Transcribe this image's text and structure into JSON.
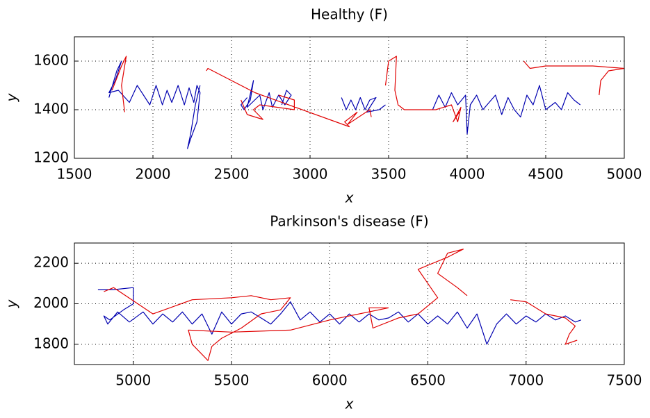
{
  "chart_data": [
    {
      "type": "line",
      "title": "Healthy (F)",
      "x_label": "x",
      "y_label": "y",
      "xlim": [
        1500,
        5000
      ],
      "ylim": [
        1200,
        1700
      ],
      "xticks": [
        1500,
        2000,
        2500,
        3000,
        3500,
        4000,
        4500,
        5000
      ],
      "yticks": [
        1200,
        1400,
        1600
      ],
      "grid": true,
      "series": [
        {
          "color": "#0000b0",
          "x": [
            1720,
            1770,
            1800,
            1760,
            1720,
            1780,
            1850,
            1900,
            1950,
            1980,
            2020,
            2060,
            2090,
            2120,
            2160,
            2200,
            2230,
            2260,
            2280,
            2300,
            2280,
            2240,
            2220,
            2240,
            2270,
            2300,
            null,
            2600,
            2560,
            2580,
            2620,
            2640,
            2600,
            2680,
            2700,
            2740,
            2760,
            2800,
            2840,
            2880,
            2850,
            2820,
            null,
            3200,
            3230,
            3260,
            3290,
            3320,
            3350,
            3380,
            3420,
            3360,
            3440,
            3480,
            null,
            3780,
            3820,
            3860,
            3900,
            3940,
            3990,
            4000,
            4020,
            4060,
            4100,
            4140,
            4180,
            4220,
            4260,
            4300,
            4340,
            4380,
            4420,
            4460,
            4500,
            4560,
            4600,
            4640,
            4680,
            4720
          ],
          "y": [
            1450,
            1560,
            1600,
            1520,
            1470,
            1480,
            1430,
            1500,
            1450,
            1420,
            1500,
            1420,
            1480,
            1430,
            1500,
            1420,
            1490,
            1430,
            1500,
            1470,
            1350,
            1280,
            1240,
            1300,
            1420,
            1500,
            null,
            1450,
            1420,
            1400,
            1440,
            1520,
            1410,
            1460,
            1400,
            1470,
            1410,
            1460,
            1420,
            1460,
            1480,
            1420,
            null,
            1450,
            1400,
            1440,
            1400,
            1450,
            1400,
            1440,
            1450,
            1390,
            1400,
            1420,
            null,
            1400,
            1460,
            1410,
            1470,
            1420,
            1460,
            1300,
            1420,
            1460,
            1400,
            1430,
            1460,
            1380,
            1450,
            1400,
            1370,
            1460,
            1420,
            1500,
            1400,
            1430,
            1400,
            1470,
            1440,
            1420
          ]
        },
        {
          "color": "#e00000",
          "x": [
            1740,
            1800,
            1830,
            1800,
            1820,
            null,
            2340,
            2350,
            2650,
            3250,
            3220,
            3300,
            3240,
            3380,
            3390,
            null,
            2560,
            2600,
            2700,
            2640,
            2680,
            2900,
            2900,
            2800,
            null,
            3480,
            3500,
            3550,
            3540,
            3560,
            3600,
            3800,
            3900,
            3940,
            3960,
            3910,
            3950,
            null,
            4360,
            4400,
            4500,
            4800,
            5000,
            4900,
            4850,
            4840
          ],
          "y": [
            1480,
            1580,
            1620,
            1500,
            1390,
            null,
            1560,
            1570,
            1470,
            1330,
            1350,
            1390,
            1340,
            1400,
            1370,
            null,
            1440,
            1380,
            1360,
            1400,
            1420,
            1400,
            1440,
            1460,
            null,
            1500,
            1600,
            1620,
            1480,
            1420,
            1400,
            1400,
            1420,
            1350,
            1410,
            1350,
            1390,
            null,
            1600,
            1570,
            1580,
            1580,
            1570,
            1560,
            1520,
            1460
          ]
        }
      ]
    },
    {
      "type": "line",
      "title": "Parkinson's disease (F)",
      "x_label": "x",
      "y_label": "y",
      "xlim": [
        4700,
        7500
      ],
      "ylim": [
        1700,
        2300
      ],
      "xticks": [
        5000,
        5500,
        6000,
        6500,
        7000,
        7500
      ],
      "yticks": [
        1800,
        2000,
        2200
      ],
      "grid": true,
      "series": [
        {
          "color": "#0000b0",
          "x": [
            4820,
            4900,
            5000,
            5000,
            4950,
            4880,
            4850,
            4870,
            4920,
            4980,
            5050,
            5100,
            5150,
            5200,
            5250,
            5300,
            5350,
            5400,
            5450,
            5500,
            5550,
            5600,
            5650,
            5700,
            5750,
            5800,
            5850,
            5900,
            5950,
            6000,
            6050,
            6100,
            6150,
            6200,
            6250,
            6300,
            6350,
            6400,
            6450,
            6500,
            6550,
            6600,
            6650,
            6700,
            6750,
            6800,
            6850,
            6900,
            6950,
            7000,
            7050,
            7100,
            7150,
            7200,
            7250,
            7280
          ],
          "y": [
            2070,
            2070,
            2080,
            2000,
            1970,
            1920,
            1940,
            1900,
            1960,
            1910,
            1960,
            1900,
            1950,
            1910,
            1960,
            1900,
            1950,
            1850,
            1960,
            1900,
            1950,
            1960,
            1930,
            1900,
            1950,
            2010,
            1920,
            1960,
            1910,
            1950,
            1900,
            1950,
            1910,
            1950,
            1920,
            1930,
            1960,
            1910,
            1950,
            1900,
            1940,
            1900,
            1960,
            1880,
            1950,
            1800,
            1900,
            1950,
            1900,
            1940,
            1910,
            1950,
            1920,
            1940,
            1910,
            1920
          ]
        },
        {
          "color": "#e00000",
          "x": [
            4850,
            4900,
            5100,
            5300,
            5500,
            5600,
            5700,
            5800,
            5750,
            5650,
            5550,
            5450,
            5400,
            5380,
            5300,
            5280,
            5500,
            5800,
            6000,
            6300,
            null,
            6300,
            6200,
            6220,
            6350,
            6450,
            6550,
            6500,
            6450,
            6600,
            6680,
            6600,
            6550,
            6650,
            6700,
            null,
            6920,
            7000,
            7100,
            7200,
            7250,
            7220,
            7200,
            7260
          ],
          "y": [
            2060,
            2080,
            1950,
            2020,
            2030,
            2040,
            2020,
            2030,
            1970,
            1950,
            1880,
            1830,
            1790,
            1720,
            1800,
            1870,
            1860,
            1870,
            1920,
            1980,
            null,
            1980,
            1980,
            1880,
            1930,
            1950,
            2030,
            2100,
            2170,
            2230,
            2270,
            2250,
            2150,
            2080,
            2040,
            null,
            2020,
            2010,
            1950,
            1930,
            1890,
            1850,
            1800,
            1820
          ]
        }
      ]
    }
  ]
}
